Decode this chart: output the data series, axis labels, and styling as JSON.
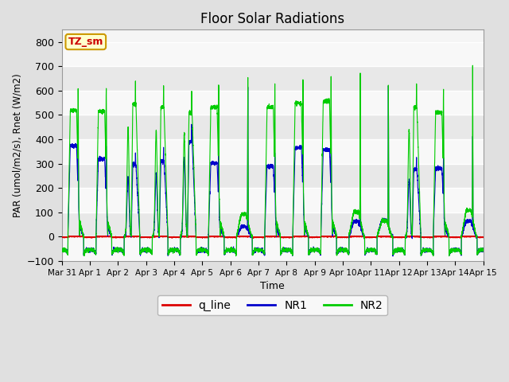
{
  "title": "Floor Solar Radiations",
  "xlabel": "Time",
  "ylabel": "PAR (umol/m2/s), Rnet (W/m2)",
  "ylim": [
    -100,
    850
  ],
  "yticks": [
    -100,
    0,
    100,
    200,
    300,
    400,
    500,
    600,
    700,
    800
  ],
  "background_color": "#e0e0e0",
  "plot_bg_color": "#f5f5f5",
  "line_colors": {
    "q_line": "#dd0000",
    "NR1": "#0000cc",
    "NR2": "#00cc00"
  },
  "legend_box_color": "#ffffcc",
  "legend_box_edge": "#cc9900",
  "legend_text_color": "#cc0000",
  "legend_box_label": "TZ_sm",
  "num_days": 16,
  "pts_per_day": 480,
  "tick_labels": [
    "Mar 31",
    "Apr 1",
    "Apr 2",
    "Apr 3",
    "Apr 4",
    "Apr 5",
    "Apr 6",
    "Apr 7",
    "Apr 8",
    "Apr 9",
    "Apr 10",
    "Apr 11",
    "Apr 12",
    "Apr 13",
    "Apr 14",
    "Apr 15"
  ],
  "tick_positions": [
    0,
    1,
    2,
    3,
    4,
    5,
    6,
    7,
    8,
    9,
    10,
    11,
    12,
    13,
    14,
    15
  ],
  "night_NR2": -55,
  "night_NR1": -55,
  "night_q": -3,
  "day_q_level": 0,
  "grid_band_color_dark": "#e8e8e8",
  "grid_band_color_light": "#f8f8f8"
}
